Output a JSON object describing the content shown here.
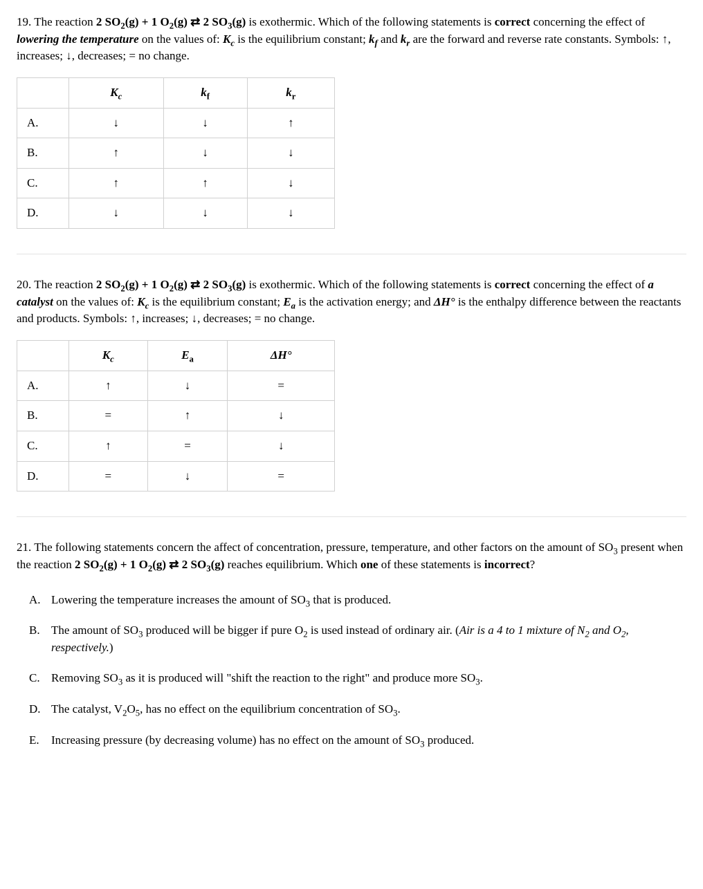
{
  "q19": {
    "number": "19.",
    "text_parts": {
      "p1": "The reaction ",
      "eq": "2 SO",
      "eq_sub1": "2",
      "eq_g1": "(g) + 1 O",
      "eq_sub2": "2",
      "eq_g2": "(g) ⇄ 2 SO",
      "eq_sub3": "3",
      "eq_g3": "(g)",
      "p2": " is exothermic. Which of the following statements is ",
      "correct": "correct",
      "p3": " concerning the effect of ",
      "action": "lowering the temperature",
      "p4": " on the values of: ",
      "kc": "K",
      "kc_sub": "c",
      "p5": " is the equilibrium constant; ",
      "kf": "k",
      "kf_sub": "f",
      "p6": " and ",
      "kr": "k",
      "kr_sub": "r",
      "p7": " are the forward and reverse rate constants. Symbols: ↑, increases; ↓, decreases; = no change."
    },
    "headers": {
      "h1": "",
      "h2": "K",
      "h2s": "c",
      "h3": "k",
      "h3s": "f",
      "h4": "k",
      "h4s": "r"
    },
    "rows": [
      {
        "label": "A.",
        "c1": "↓",
        "c2": "↓",
        "c3": "↑"
      },
      {
        "label": "B.",
        "c1": "↑",
        "c2": "↓",
        "c3": "↓"
      },
      {
        "label": "C.",
        "c1": "↑",
        "c2": "↑",
        "c3": "↓"
      },
      {
        "label": "D.",
        "c1": "↓",
        "c2": "↓",
        "c3": "↓"
      }
    ]
  },
  "q20": {
    "number": "20.",
    "text_parts": {
      "p1": "The reaction ",
      "eq": "2 SO",
      "eq_sub1": "2",
      "eq_g1": "(g) + 1 O",
      "eq_sub2": "2",
      "eq_g2": "(g) ⇄ 2 SO",
      "eq_sub3": "3",
      "eq_g3": "(g)",
      "p2": " is exothermic. Which of the following statements is ",
      "correct": "correct",
      "p3": " concerning the effect of ",
      "action": "a catalyst",
      "p4": " on the values of: ",
      "kc": "K",
      "kc_sub": "c",
      "p5": " is the equilibrium constant; ",
      "ea": "E",
      "ea_sub": "a",
      "p6": " is the activation energy; and ",
      "dh": "ΔH°",
      "p7": " is the enthalpy difference between the reactants and products. Symbols: ↑, increases; ↓, decreases; = no change."
    },
    "headers": {
      "h1": "",
      "h2": "K",
      "h2s": "c",
      "h3": "E",
      "h3s": "a",
      "h4": "ΔH°"
    },
    "rows": [
      {
        "label": "A.",
        "c1": "↑",
        "c2": "↓",
        "c3": "="
      },
      {
        "label": "B.",
        "c1": "=",
        "c2": "↑",
        "c3": "↓"
      },
      {
        "label": "C.",
        "c1": "↑",
        "c2": "=",
        "c3": "↓"
      },
      {
        "label": "D.",
        "c1": "=",
        "c2": "↓",
        "c3": "="
      }
    ]
  },
  "q21": {
    "number": "21.",
    "text_parts": {
      "p1": "The following statements concern the affect of concentration, pressure, temperature, and other factors on the amount of SO",
      "sub1": "3",
      "p2": " present when the reaction ",
      "eq": "2 SO",
      "eq_sub1": "2",
      "eq_g1": "(g) + 1 O",
      "eq_sub2": "2",
      "eq_g2": "(g) ⇄ 2 SO",
      "eq_sub3": "3",
      "eq_g3": "(g)",
      "p3": " reaches equilibrium. Which ",
      "one": "one",
      "p4": " of these statements is ",
      "incorrect": "incorrect",
      "p5": "?"
    },
    "choices": [
      {
        "letter": "A.",
        "text": "Lowering the temperature increases the amount of SO",
        "sub": "3",
        "text2": " that is produced."
      },
      {
        "letter": "B.",
        "text": "The amount of SO",
        "sub": "3",
        "text2": " produced will be bigger if pure O",
        "sub2": "2",
        "text3": " is used instead of ordinary air. (",
        "italic": "Air is a 4 to 1 mixture of N",
        "isub1": "2",
        "italic2": " and O",
        "isub2": "2",
        "italic3": ", respectively.",
        "text4": ")"
      },
      {
        "letter": "C.",
        "text": "Removing SO",
        "sub": "3",
        "text2": " as it is produced will \"shift the reaction to the right\" and produce more SO",
        "sub2": "3",
        "text3": "."
      },
      {
        "letter": "D.",
        "text": "The catalyst, V",
        "sub": "2",
        "text2": "O",
        "sub2": "5",
        "text3": ", has no effect on the equilibrium concentration of SO",
        "sub3": "3",
        "text4": "."
      },
      {
        "letter": "E.",
        "text": "Increasing pressure (by decreasing volume) has no effect on the amount of SO",
        "sub": "3",
        "text2": " produced."
      }
    ]
  }
}
